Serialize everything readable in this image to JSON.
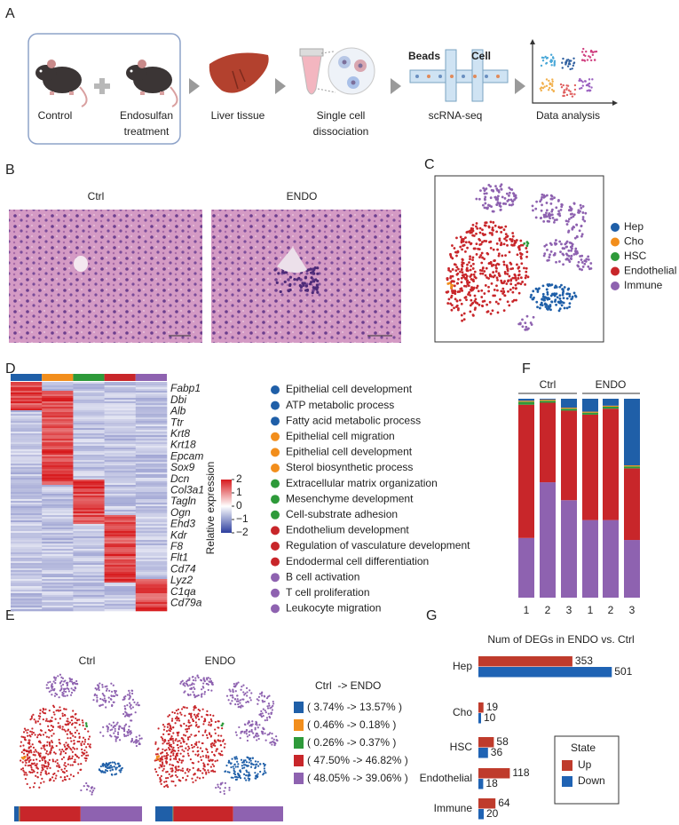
{
  "panel_labels": [
    "A",
    "B",
    "C",
    "D",
    "E",
    "F",
    "G"
  ],
  "panel_a": {
    "steps": [
      {
        "lines": [
          "Control"
        ]
      },
      {
        "lines": [
          "Endosulfan",
          "treatment"
        ]
      },
      {
        "lines": [
          "Liver tissue"
        ]
      },
      {
        "lines": [
          "Single cell",
          "dissociation"
        ]
      },
      {
        "lines": [
          "scRNA-seq"
        ]
      },
      {
        "lines": [
          "Data analysis"
        ]
      }
    ],
    "chip_labels": [
      "Beads",
      "Cell"
    ]
  },
  "panel_b": {
    "titles": [
      "Ctrl",
      "ENDO"
    ]
  },
  "panel_c": {
    "legend": [
      {
        "label": "Hep",
        "color": "#1f5fa8"
      },
      {
        "label": "Cho",
        "color": "#f28e1c"
      },
      {
        "label": "HSC",
        "color": "#2e9a3a"
      },
      {
        "label": "Endothelial",
        "color": "#c8262a"
      },
      {
        "label": "Immune",
        "color": "#8e62b0"
      }
    ]
  },
  "panel_d": {
    "genes": [
      {
        "label": "Fabp1",
        "color": "#1f5fa8"
      },
      {
        "label": "Dbi",
        "color": "#1f5fa8"
      },
      {
        "label": "Alb",
        "color": "#1f5fa8"
      },
      {
        "label": "Ttr",
        "color": "#1f5fa8"
      },
      {
        "label": "Krt8",
        "color": "#f28e1c"
      },
      {
        "label": "Krt18",
        "color": "#f28e1c"
      },
      {
        "label": "Epcam",
        "color": "#f28e1c"
      },
      {
        "label": "Sox9",
        "color": "#f28e1c"
      },
      {
        "label": "Dcn",
        "color": "#2e9a3a"
      },
      {
        "label": "Col3a1",
        "color": "#2e9a3a"
      },
      {
        "label": "Tagln",
        "color": "#2e9a3a"
      },
      {
        "label": "Ogn",
        "color": "#2e9a3a"
      },
      {
        "label": "Ehd3",
        "color": "#c8262a"
      },
      {
        "label": "Kdr",
        "color": "#c8262a"
      },
      {
        "label": "F8",
        "color": "#c8262a"
      },
      {
        "label": "Flt1",
        "color": "#c8262a"
      },
      {
        "label": "Cd74",
        "color": "#8e62b0"
      },
      {
        "label": "Lyz2",
        "color": "#8e62b0"
      },
      {
        "label": "C1qa",
        "color": "#8e62b0"
      },
      {
        "label": "Cd79a",
        "color": "#8e62b0"
      }
    ],
    "colorbar": {
      "label": "Relative expression",
      "ticks": [
        2,
        1,
        0,
        {
          "value": -1,
          "label": "−1"
        },
        {
          "value": -2,
          "label": "−2"
        }
      ]
    },
    "terms": [
      {
        "label": "Epithelial cell development",
        "color": "#1f5fa8"
      },
      {
        "label": "ATP metabolic process",
        "color": "#1f5fa8"
      },
      {
        "label": "Fatty acid metabolic process",
        "color": "#1f5fa8"
      },
      {
        "label": "Epithelial cell migration",
        "color": "#f28e1c"
      },
      {
        "label": "Epithelial cell development",
        "color": "#f28e1c"
      },
      {
        "label": "Sterol biosynthetic process",
        "color": "#f28e1c"
      },
      {
        "label": "Extracellular matrix organization",
        "color": "#2e9a3a"
      },
      {
        "label": "Mesenchyme development",
        "color": "#2e9a3a"
      },
      {
        "label": "Cell-substrate adhesion",
        "color": "#2e9a3a"
      },
      {
        "label": "Endothelium development",
        "color": "#c8262a"
      },
      {
        "label": "Regulation of vasculature development",
        "color": "#c8262a"
      },
      {
        "label": "Endodermal cell differentiation",
        "color": "#c8262a"
      },
      {
        "label": "B cell activation",
        "color": "#8e62b0"
      },
      {
        "label": "T cell proliferation",
        "color": "#8e62b0"
      },
      {
        "label": "Leukocyte migration",
        "color": "#8e62b0"
      }
    ]
  },
  "panel_e": {
    "titles": [
      "Ctrl",
      "ENDO"
    ],
    "legend_title": "Ctrl  -> ENDO",
    "legend": [
      {
        "label": "( 3.74% -> 13.57% )",
        "color": "#1f5fa8",
        "ctrl": 3.74,
        "endo": 13.57
      },
      {
        "label": "( 0.46% -> 0.18% )",
        "color": "#f28e1c",
        "ctrl": 0.46,
        "endo": 0.18
      },
      {
        "label": "( 0.26% -> 0.37% )",
        "color": "#2e9a3a",
        "ctrl": 0.26,
        "endo": 0.37
      },
      {
        "label": "( 47.50% -> 46.82% )",
        "color": "#c8262a",
        "ctrl": 47.5,
        "endo": 46.82
      },
      {
        "label": "( 48.05% -> 39.06% )",
        "color": "#8e62b0",
        "ctrl": 48.05,
        "endo": 39.06
      }
    ]
  },
  "chart_data": [
    {
      "type": "stacked_bar",
      "categories": [
        "1",
        "2",
        "3",
        "1",
        "2",
        "3"
      ],
      "groups": [
        "Ctrl",
        "ENDO"
      ],
      "series": [
        {
          "color": "#8e62b0",
          "values": [
            30,
            58,
            49,
            39,
            39,
            29
          ]
        },
        {
          "color": "#c8262a",
          "values": [
            67,
            40,
            45,
            53,
            56,
            36
          ]
        },
        {
          "color": "#2e9a3a",
          "values": [
            1.5,
            1,
            1,
            1,
            1,
            1
          ]
        },
        {
          "color": "#f28e1c",
          "values": [
            0.5,
            0.5,
            0.5,
            0.5,
            0.5,
            0.5
          ]
        },
        {
          "color": "#1f5fa8",
          "values": [
            1,
            0.5,
            4.5,
            6.5,
            3.5,
            33.5
          ]
        }
      ],
      "ylim": [
        0,
        100
      ]
    },
    {
      "type": "hbar",
      "title": "Num of DEGs in ENDO vs. Ctrl",
      "categories": [
        "Hep",
        "Cho",
        "HSC",
        "Endothelial",
        "Immune"
      ],
      "series": [
        {
          "name": "Up",
          "color": "#bf3b2c",
          "values": [
            353,
            19,
            58,
            118,
            64
          ]
        },
        {
          "name": "Down",
          "color": "#1f63b4",
          "values": [
            501,
            10,
            36,
            18,
            20
          ]
        }
      ],
      "xlim": [
        0,
        520
      ],
      "legend_title": "State"
    }
  ]
}
